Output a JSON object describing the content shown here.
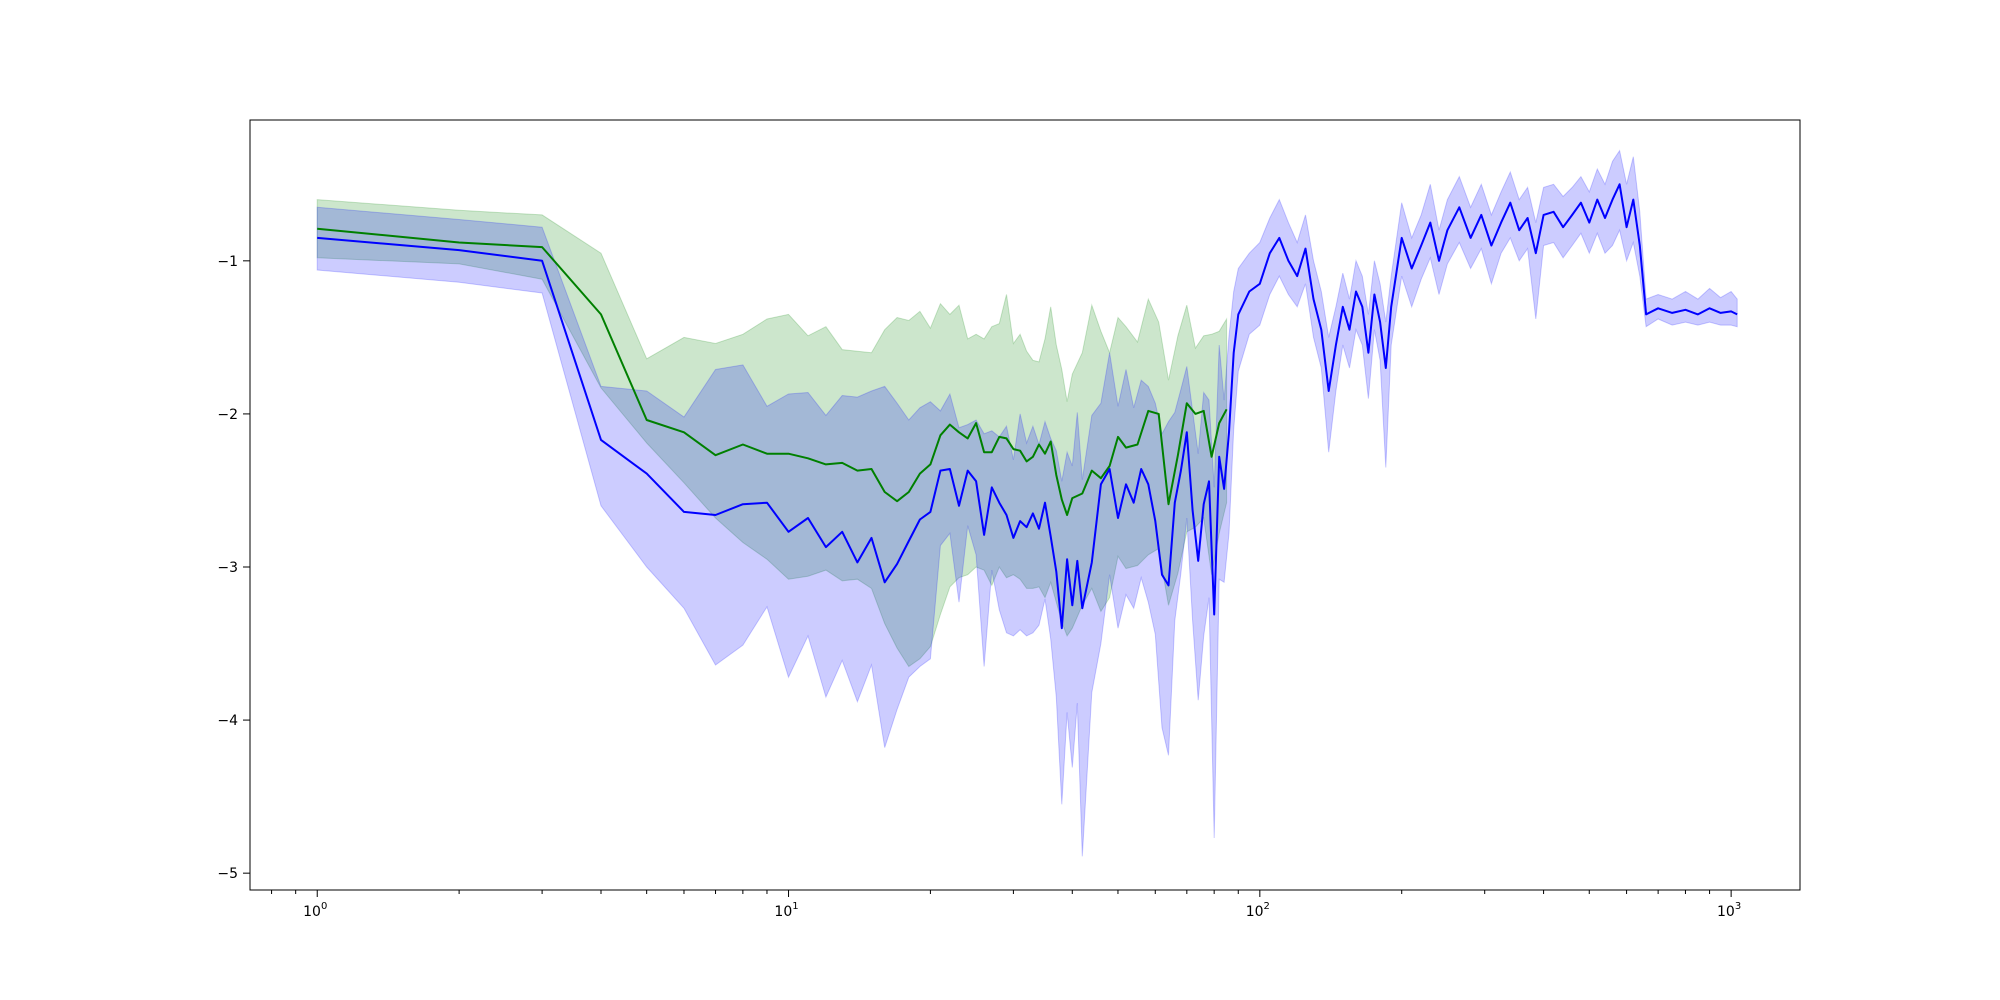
{
  "chart_data": {
    "type": "line",
    "title": "",
    "xlabel": "",
    "ylabel": "",
    "xscale": "log",
    "xlim": [
      0.72,
      1400
    ],
    "ylim": [
      -5.11,
      -0.08
    ],
    "x_ticks": [
      {
        "value": 1,
        "label": "10",
        "exp": "0"
      },
      {
        "value": 10,
        "label": "10",
        "exp": "1"
      },
      {
        "value": 100,
        "label": "10",
        "exp": "2"
      },
      {
        "value": 1000,
        "label": "10",
        "exp": "3"
      }
    ],
    "y_ticks": [
      {
        "value": -1,
        "label": "−1"
      },
      {
        "value": -2,
        "label": "−2"
      },
      {
        "value": -3,
        "label": "−3"
      },
      {
        "value": -4,
        "label": "−4"
      },
      {
        "value": -5,
        "label": "−5"
      }
    ],
    "grid": false,
    "legend": "none",
    "series": [
      {
        "color": "#008000",
        "band_color": "#008000",
        "band_opacity": 0.2,
        "points": [
          [
            1,
            -0.79,
            -0.6,
            -0.98
          ],
          [
            2,
            -0.88,
            -0.67,
            -1.02
          ],
          [
            3,
            -0.91,
            -0.7,
            -1.12
          ],
          [
            4,
            -1.35,
            -0.95,
            -1.83
          ],
          [
            5,
            -2.04,
            -1.64,
            -2.19
          ],
          [
            6,
            -2.12,
            -1.5,
            -2.45
          ],
          [
            7,
            -2.27,
            -1.54,
            -2.68
          ],
          [
            8,
            -2.2,
            -1.48,
            -2.84
          ],
          [
            9,
            -2.26,
            -1.38,
            -2.95
          ],
          [
            10,
            -2.26,
            -1.35,
            -3.08
          ],
          [
            11,
            -2.29,
            -1.49,
            -3.06
          ],
          [
            12,
            -2.33,
            -1.43,
            -3.02
          ],
          [
            13,
            -2.32,
            -1.58,
            -3.09
          ],
          [
            14,
            -2.37,
            -1.59,
            -3.08
          ],
          [
            15,
            -2.36,
            -1.6,
            -3.14
          ],
          [
            16,
            -2.51,
            -1.45,
            -3.37
          ],
          [
            17,
            -2.57,
            -1.37,
            -3.53
          ],
          [
            18,
            -2.51,
            -1.39,
            -3.65
          ],
          [
            19,
            -2.39,
            -1.33,
            -3.6
          ],
          [
            20,
            -2.33,
            -1.44,
            -3.52
          ],
          [
            21,
            -2.14,
            -1.28,
            -3.31
          ],
          [
            22,
            -2.07,
            -1.35,
            -3.13
          ],
          [
            23,
            -2.12,
            -1.29,
            -3.07
          ],
          [
            24,
            -2.16,
            -1.51,
            -3.05
          ],
          [
            25,
            -2.06,
            -1.48,
            -3.0
          ],
          [
            26,
            -2.25,
            -1.51,
            -3.02
          ],
          [
            27,
            -2.25,
            -1.43,
            -3.12
          ],
          [
            28,
            -2.15,
            -1.41,
            -3.0
          ],
          [
            29,
            -2.16,
            -1.22,
            -3.07
          ],
          [
            30,
            -2.23,
            -1.54,
            -3.05
          ],
          [
            31,
            -2.24,
            -1.48,
            -3.08
          ],
          [
            32,
            -2.31,
            -1.59,
            -3.14
          ],
          [
            33,
            -2.28,
            -1.65,
            -3.14
          ],
          [
            34,
            -2.2,
            -1.66,
            -3.13
          ],
          [
            35,
            -2.26,
            -1.51,
            -3.2
          ],
          [
            36,
            -2.18,
            -1.3,
            -3.1
          ],
          [
            37,
            -2.4,
            -1.55,
            -3.23
          ],
          [
            38,
            -2.56,
            -1.71,
            -3.36
          ],
          [
            39,
            -2.66,
            -1.92,
            -3.45
          ],
          [
            40,
            -2.55,
            -1.74,
            -3.4
          ],
          [
            42,
            -2.52,
            -1.6,
            -3.25
          ],
          [
            44,
            -2.37,
            -1.29,
            -3.14
          ],
          [
            46,
            -2.42,
            -1.46,
            -3.29
          ],
          [
            48,
            -2.34,
            -1.6,
            -3.2
          ],
          [
            50,
            -2.15,
            -1.37,
            -2.93
          ],
          [
            52,
            -2.22,
            -1.43,
            -3.01
          ],
          [
            55,
            -2.2,
            -1.53,
            -2.99
          ],
          [
            58,
            -1.98,
            -1.25,
            -2.92
          ],
          [
            61,
            -2.0,
            -1.4,
            -2.88
          ],
          [
            64,
            -2.59,
            -1.78,
            -3.25
          ],
          [
            67,
            -2.27,
            -1.49,
            -3.04
          ],
          [
            70,
            -1.93,
            -1.29,
            -2.77
          ],
          [
            73,
            -2.0,
            -1.57,
            -2.74
          ],
          [
            76,
            -1.98,
            -1.49,
            -2.68
          ],
          [
            79,
            -2.28,
            -1.48,
            -3.05
          ],
          [
            82,
            -2.06,
            -1.46,
            -2.78
          ],
          [
            85,
            -1.97,
            -1.38,
            -2.58
          ]
        ]
      },
      {
        "color": "#0000ff",
        "band_color": "#0000ff",
        "band_opacity": 0.2,
        "points": [
          [
            1,
            -0.85,
            -0.65,
            -1.06
          ],
          [
            2,
            -0.93,
            -0.73,
            -1.14
          ],
          [
            3,
            -1.0,
            -0.78,
            -1.21
          ],
          [
            4,
            -2.17,
            -1.82,
            -2.6
          ],
          [
            5,
            -2.39,
            -1.85,
            -3.0
          ],
          [
            6,
            -2.64,
            -2.02,
            -3.27
          ],
          [
            7,
            -2.66,
            -1.71,
            -3.64
          ],
          [
            8,
            -2.59,
            -1.68,
            -3.51
          ],
          [
            9,
            -2.58,
            -1.95,
            -3.26
          ],
          [
            10,
            -2.77,
            -1.87,
            -3.72
          ],
          [
            11,
            -2.68,
            -1.86,
            -3.45
          ],
          [
            12,
            -2.87,
            -2.01,
            -3.85
          ],
          [
            13,
            -2.77,
            -1.88,
            -3.61
          ],
          [
            14,
            -2.97,
            -1.89,
            -3.88
          ],
          [
            15,
            -2.81,
            -1.85,
            -3.64
          ],
          [
            16,
            -3.1,
            -1.82,
            -4.18
          ],
          [
            17,
            -2.98,
            -1.93,
            -3.93
          ],
          [
            18,
            -2.83,
            -2.04,
            -3.72
          ],
          [
            19,
            -2.69,
            -1.96,
            -3.65
          ],
          [
            20,
            -2.64,
            -1.92,
            -3.6
          ],
          [
            21,
            -2.37,
            -1.98,
            -2.86
          ],
          [
            22,
            -2.36,
            -1.87,
            -2.78
          ],
          [
            23,
            -2.6,
            -2.09,
            -3.23
          ],
          [
            24,
            -2.37,
            -2.07,
            -2.73
          ],
          [
            25,
            -2.44,
            -2.04,
            -2.92
          ],
          [
            26,
            -2.79,
            -2.13,
            -3.65
          ],
          [
            27,
            -2.48,
            -2.11,
            -3.02
          ],
          [
            28,
            -2.58,
            -2.15,
            -3.28
          ],
          [
            29,
            -2.66,
            -2.08,
            -3.43
          ],
          [
            30,
            -2.81,
            -2.3,
            -3.45
          ],
          [
            31,
            -2.7,
            -2.0,
            -3.41
          ],
          [
            32,
            -2.74,
            -2.19,
            -3.45
          ],
          [
            33,
            -2.65,
            -2.08,
            -3.43
          ],
          [
            34,
            -2.75,
            -2.2,
            -3.38
          ],
          [
            35,
            -2.58,
            -2.05,
            -3.21
          ],
          [
            36,
            -2.8,
            -2.16,
            -3.47
          ],
          [
            37,
            -3.03,
            -2.24,
            -3.85
          ],
          [
            38,
            -3.4,
            -2.44,
            -4.55
          ],
          [
            39,
            -2.95,
            -2.25,
            -3.95
          ],
          [
            40,
            -3.25,
            -2.34,
            -4.31
          ],
          [
            41,
            -2.96,
            -1.99,
            -3.89
          ],
          [
            42,
            -3.27,
            -2.43,
            -4.89
          ],
          [
            44,
            -2.97,
            -2.01,
            -3.82
          ],
          [
            46,
            -2.46,
            -1.93,
            -3.5
          ],
          [
            48,
            -2.36,
            -1.6,
            -3.05
          ],
          [
            50,
            -2.68,
            -1.95,
            -3.4
          ],
          [
            52,
            -2.46,
            -1.71,
            -3.18
          ],
          [
            54,
            -2.58,
            -1.96,
            -3.27
          ],
          [
            56,
            -2.36,
            -1.78,
            -3.07
          ],
          [
            58,
            -2.46,
            -1.82,
            -3.23
          ],
          [
            60,
            -2.7,
            -1.93,
            -3.44
          ],
          [
            62,
            -3.05,
            -2.13,
            -4.05
          ],
          [
            64,
            -3.12,
            -2.05,
            -4.23
          ],
          [
            66,
            -2.58,
            -1.99,
            -3.35
          ],
          [
            68,
            -2.37,
            -1.84,
            -3.04
          ],
          [
            70,
            -2.12,
            -1.69,
            -2.68
          ],
          [
            72,
            -2.63,
            -1.98,
            -3.35
          ],
          [
            74,
            -2.96,
            -2.26,
            -3.87
          ],
          [
            76,
            -2.59,
            -1.86,
            -3.45
          ],
          [
            78,
            -2.44,
            -1.91,
            -3.2
          ],
          [
            80,
            -3.31,
            -2.48,
            -4.77
          ],
          [
            82,
            -2.28,
            -1.55,
            -3.08
          ],
          [
            84,
            -2.49,
            -1.91,
            -3.1
          ],
          [
            86,
            -2.12,
            -1.49,
            -2.78
          ],
          [
            88,
            -1.6,
            -1.2,
            -2.1
          ],
          [
            90,
            -1.35,
            -1.05,
            -1.72
          ],
          [
            95,
            -1.2,
            -0.95,
            -1.48
          ],
          [
            100,
            -1.15,
            -0.88,
            -1.42
          ],
          [
            105,
            -0.95,
            -0.72,
            -1.22
          ],
          [
            110,
            -0.85,
            -0.6,
            -1.1
          ],
          [
            115,
            -1.0,
            -0.75,
            -1.22
          ],
          [
            120,
            -1.1,
            -0.88,
            -1.3
          ],
          [
            125,
            -0.92,
            -0.7,
            -1.15
          ],
          [
            130,
            -1.25,
            -1.0,
            -1.5
          ],
          [
            135,
            -1.45,
            -1.2,
            -1.7
          ],
          [
            140,
            -1.85,
            -1.5,
            -2.25
          ],
          [
            145,
            -1.55,
            -1.3,
            -1.85
          ],
          [
            150,
            -1.3,
            -1.08,
            -1.55
          ],
          [
            155,
            -1.45,
            -1.25,
            -1.7
          ],
          [
            160,
            -1.2,
            -1.0,
            -1.45
          ],
          [
            165,
            -1.3,
            -1.1,
            -1.55
          ],
          [
            170,
            -1.6,
            -1.35,
            -1.9
          ],
          [
            175,
            -1.22,
            -1.0,
            -1.45
          ],
          [
            180,
            -1.4,
            -1.15,
            -1.65
          ],
          [
            185,
            -1.7,
            -1.4,
            -2.35
          ],
          [
            190,
            -1.3,
            -1.1,
            -1.55
          ],
          [
            200,
            -0.85,
            -0.62,
            -1.1
          ],
          [
            210,
            -1.05,
            -0.85,
            -1.3
          ],
          [
            220,
            -0.9,
            -0.7,
            -1.12
          ],
          [
            230,
            -0.75,
            -0.5,
            -0.98
          ],
          [
            240,
            -1.0,
            -0.8,
            -1.22
          ],
          [
            250,
            -0.8,
            -0.6,
            -1.02
          ],
          [
            265,
            -0.65,
            -0.45,
            -0.88
          ],
          [
            280,
            -0.85,
            -0.65,
            -1.05
          ],
          [
            295,
            -0.7,
            -0.5,
            -0.92
          ],
          [
            310,
            -0.9,
            -0.7,
            -1.15
          ],
          [
            325,
            -0.75,
            -0.55,
            -0.95
          ],
          [
            340,
            -0.62,
            -0.42,
            -0.85
          ],
          [
            355,
            -0.8,
            -0.6,
            -1.0
          ],
          [
            370,
            -0.72,
            -0.52,
            -0.92
          ],
          [
            385,
            -0.95,
            -0.75,
            -1.38
          ],
          [
            400,
            -0.7,
            -0.52,
            -0.9
          ],
          [
            420,
            -0.68,
            -0.5,
            -0.88
          ],
          [
            440,
            -0.78,
            -0.58,
            -0.98
          ],
          [
            460,
            -0.7,
            -0.52,
            -0.9
          ],
          [
            480,
            -0.62,
            -0.45,
            -0.82
          ],
          [
            500,
            -0.75,
            -0.55,
            -0.95
          ],
          [
            520,
            -0.6,
            -0.4,
            -0.82
          ],
          [
            540,
            -0.72,
            -0.5,
            -0.95
          ],
          [
            560,
            -0.6,
            -0.35,
            -0.9
          ],
          [
            580,
            -0.5,
            -0.28,
            -0.8
          ],
          [
            600,
            -0.78,
            -0.5,
            -1.0
          ],
          [
            620,
            -0.6,
            -0.32,
            -0.88
          ],
          [
            640,
            -0.9,
            -0.68,
            -1.1
          ],
          [
            660,
            -1.35,
            -1.25,
            -1.43
          ],
          [
            700,
            -1.31,
            -1.22,
            -1.38
          ],
          [
            750,
            -1.34,
            -1.25,
            -1.42
          ],
          [
            800,
            -1.32,
            -1.2,
            -1.4
          ],
          [
            850,
            -1.35,
            -1.25,
            -1.42
          ],
          [
            900,
            -1.31,
            -1.18,
            -1.4
          ],
          [
            950,
            -1.34,
            -1.24,
            -1.42
          ],
          [
            1000,
            -1.33,
            -1.2,
            -1.42
          ],
          [
            1030,
            -1.35,
            -1.25,
            -1.43
          ]
        ]
      }
    ]
  }
}
